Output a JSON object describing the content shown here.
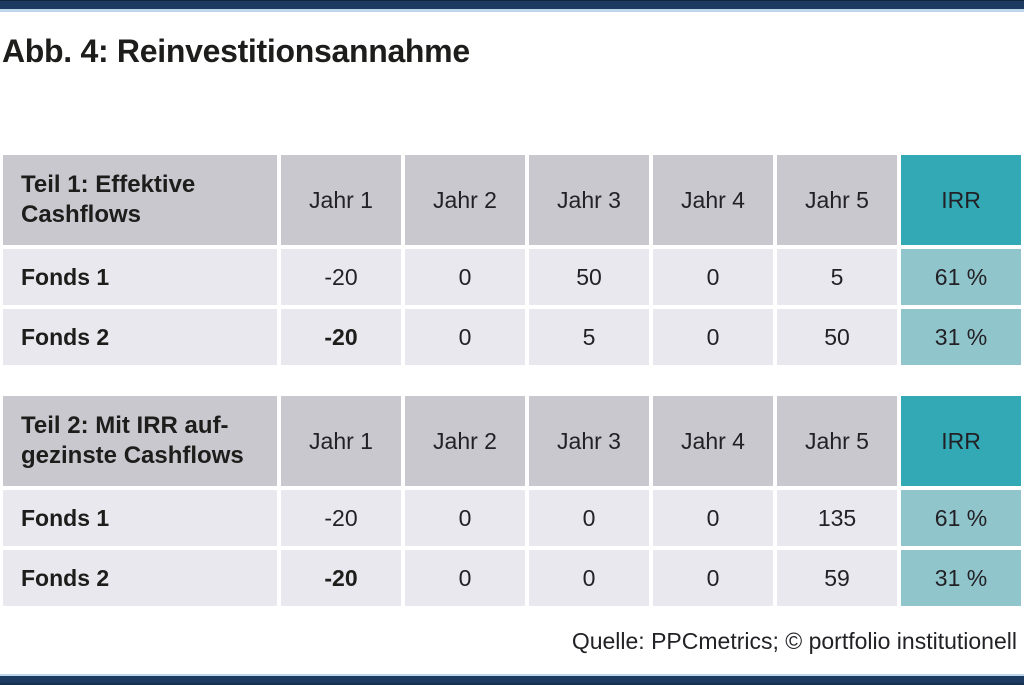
{
  "title": "Abb. 4: Reinvestitionsannahme",
  "source": "Quelle: PPCmetrics; © portfolio institutionell",
  "colors": {
    "navy_bar": "#1d3b60",
    "light_blue_accent": "#bdd6ea",
    "header_gray": "#c9c8cf",
    "row_gray": "#e9e8ee",
    "irr_teal": "#32a9b4",
    "irr_teal_light": "#91c5cc",
    "text": "#1d1d1b"
  },
  "chart_data": {
    "type": "table",
    "tables": [
      {
        "title": "Teil 1: Effektive Cashflows",
        "title_line1": "Teil 1: Effektive",
        "title_line2": "Cashflows",
        "columns": [
          "Jahr 1",
          "Jahr 2",
          "Jahr 3",
          "Jahr 4",
          "Jahr 5",
          "IRR"
        ],
        "rows": [
          {
            "label": "Fonds 1",
            "values": [
              "-20",
              "0",
              "50",
              "0",
              "5"
            ],
            "irr": "61 %"
          },
          {
            "label": "Fonds 2",
            "values": [
              "-20",
              "0",
              "5",
              "0",
              "50"
            ],
            "irr": "31 %"
          }
        ]
      },
      {
        "title": "Teil 2: Mit IRR aufgezinste Cashflows",
        "title_line1": "Teil 2: Mit IRR auf-",
        "title_line2": "gezinste Cashflows",
        "columns": [
          "Jahr 1",
          "Jahr 2",
          "Jahr 3",
          "Jahr 4",
          "Jahr 5",
          "IRR"
        ],
        "rows": [
          {
            "label": "Fonds 1",
            "values": [
              "-20",
              "0",
              "0",
              "0",
              "135"
            ],
            "irr": "61 %"
          },
          {
            "label": "Fonds 2",
            "values": [
              "-20",
              "0",
              "0",
              "0",
              "59"
            ],
            "irr": "31 %"
          }
        ]
      }
    ]
  }
}
